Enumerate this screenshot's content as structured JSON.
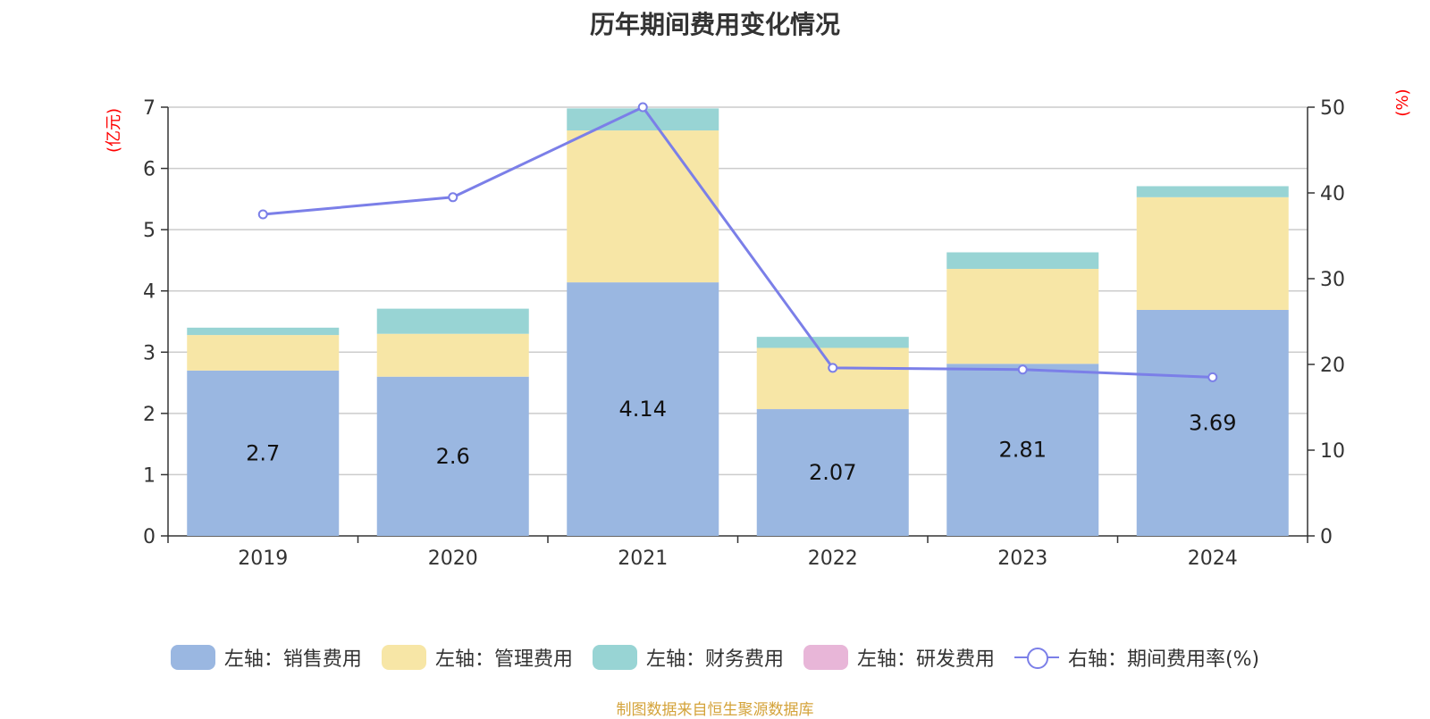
{
  "title": "历年期间费用变化情况",
  "source": "制图数据来自恒生聚源数据库",
  "chart_data": {
    "type": "bar",
    "stacked": true,
    "categories": [
      "2019",
      "2020",
      "2021",
      "2022",
      "2023",
      "2024"
    ],
    "left_axis": {
      "unit": "(亿元)",
      "ylim": [
        0,
        7
      ],
      "ticks": [
        "0",
        "1",
        "2",
        "3",
        "4",
        "5",
        "6",
        "7"
      ]
    },
    "right_axis": {
      "unit": "(%)",
      "ylim": [
        0,
        50
      ],
      "ticks": [
        "0",
        "10",
        "20",
        "30",
        "40",
        "50"
      ]
    },
    "series": [
      {
        "name": "左轴：销售费用",
        "color": "#9ab7e1",
        "values": [
          2.7,
          2.6,
          4.14,
          2.07,
          2.81,
          3.69
        ],
        "labels": [
          "2.7",
          "2.6",
          "4.14",
          "2.07",
          "2.81",
          "3.69"
        ]
      },
      {
        "name": "左轴：管理费用",
        "color": "#f7e6a6",
        "values": [
          0.58,
          0.7,
          2.48,
          1.0,
          1.55,
          1.84
        ]
      },
      {
        "name": "左轴：财务费用",
        "color": "#98d4d4",
        "values": [
          0.12,
          0.41,
          0.36,
          0.18,
          0.27,
          0.18
        ]
      },
      {
        "name": "左轴：研发费用",
        "color": "#e8b6d8",
        "values": [
          0,
          0,
          0,
          0,
          0,
          0
        ]
      }
    ],
    "line_series": {
      "name": "右轴：期间费用率(%)",
      "color": "#7b7fe8",
      "values": [
        37.5,
        39.5,
        50.0,
        19.6,
        19.4,
        18.5
      ]
    },
    "grid": true,
    "legend_position": "bottom"
  }
}
